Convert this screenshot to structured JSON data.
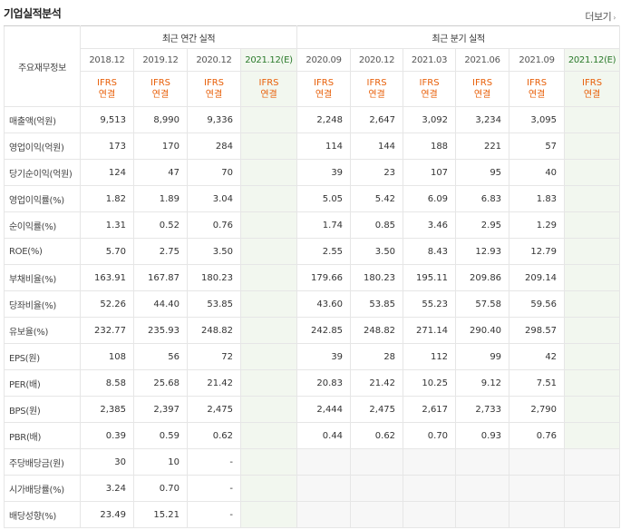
{
  "header": {
    "title": "기업실적분석",
    "more": "더보기"
  },
  "table": {
    "corner_label": "주요재무정보",
    "annual_group": "최근 연간 실적",
    "quarter_group": "최근 분기 실적",
    "periods": [
      "2018.12",
      "2019.12",
      "2020.12",
      "2021.12(E)",
      "2020.09",
      "2020.12",
      "2021.03",
      "2021.06",
      "2021.09",
      "2021.12(E)"
    ],
    "ifrs": "IFRS",
    "basis": "연결",
    "rows": [
      {
        "label": "매출액(억원)",
        "values": [
          "9,513",
          "8,990",
          "9,336",
          "",
          "2,248",
          "2,647",
          "3,092",
          "3,234",
          "3,095",
          ""
        ]
      },
      {
        "label": "영업이익(억원)",
        "values": [
          "173",
          "170",
          "284",
          "",
          "114",
          "144",
          "188",
          "221",
          "57",
          ""
        ]
      },
      {
        "label": "당기순이익(억원)",
        "values": [
          "124",
          "47",
          "70",
          "",
          "39",
          "23",
          "107",
          "95",
          "40",
          ""
        ]
      },
      {
        "label": "영업이익률(%)",
        "values": [
          "1.82",
          "1.89",
          "3.04",
          "",
          "5.05",
          "5.42",
          "6.09",
          "6.83",
          "1.83",
          ""
        ]
      },
      {
        "label": "순이익률(%)",
        "values": [
          "1.31",
          "0.52",
          "0.76",
          "",
          "1.74",
          "0.85",
          "3.46",
          "2.95",
          "1.29",
          ""
        ]
      },
      {
        "label": "ROE(%)",
        "values": [
          "5.70",
          "2.75",
          "3.50",
          "",
          "2.55",
          "3.50",
          "8.43",
          "12.93",
          "12.79",
          ""
        ]
      },
      {
        "label": "부채비율(%)",
        "values": [
          "163.91",
          "167.87",
          "180.23",
          "",
          "179.66",
          "180.23",
          "195.11",
          "209.86",
          "209.14",
          ""
        ]
      },
      {
        "label": "당좌비율(%)",
        "values": [
          "52.26",
          "44.40",
          "53.85",
          "",
          "43.60",
          "53.85",
          "55.23",
          "57.58",
          "59.56",
          ""
        ]
      },
      {
        "label": "유보율(%)",
        "values": [
          "232.77",
          "235.93",
          "248.82",
          "",
          "242.85",
          "248.82",
          "271.14",
          "290.40",
          "298.57",
          ""
        ]
      },
      {
        "label": "EPS(원)",
        "values": [
          "108",
          "56",
          "72",
          "",
          "39",
          "28",
          "112",
          "99",
          "42",
          ""
        ]
      },
      {
        "label": "PER(배)",
        "values": [
          "8.58",
          "25.68",
          "21.42",
          "",
          "20.83",
          "21.42",
          "10.25",
          "9.12",
          "7.51",
          ""
        ]
      },
      {
        "label": "BPS(원)",
        "values": [
          "2,385",
          "2,397",
          "2,475",
          "",
          "2,444",
          "2,475",
          "2,617",
          "2,733",
          "2,790",
          ""
        ]
      },
      {
        "label": "PBR(배)",
        "values": [
          "0.39",
          "0.59",
          "0.62",
          "",
          "0.44",
          "0.62",
          "0.70",
          "0.93",
          "0.76",
          ""
        ]
      },
      {
        "label": "주당배당금(원)",
        "values": [
          "30",
          "10",
          "-",
          "",
          "",
          "",
          "",
          "",
          "",
          ""
        ]
      },
      {
        "label": "시가배당률(%)",
        "values": [
          "3.24",
          "0.70",
          "-",
          "",
          "",
          "",
          "",
          "",
          "",
          ""
        ]
      },
      {
        "label": "배당성향(%)",
        "values": [
          "23.49",
          "15.21",
          "-",
          "",
          "",
          "",
          "",
          "",
          "",
          ""
        ]
      }
    ]
  },
  "colors": {
    "ifrs": "#e8600a",
    "estimate_bg": "#f2f7ef",
    "estimate_text": "#2a7a2a"
  }
}
